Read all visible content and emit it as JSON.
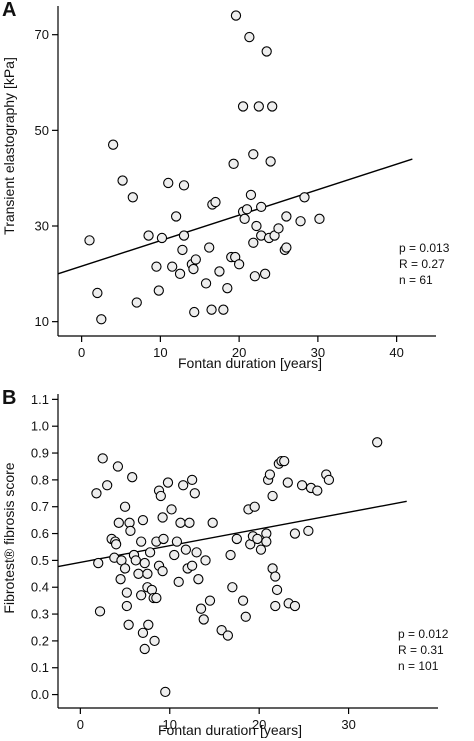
{
  "chart_data": [
    {
      "type": "scatter",
      "panel_label": "A",
      "xlabel": "Fontan duration [years]",
      "ylabel": "Transient elastography [kPa]",
      "xlim": [
        -3,
        45
      ],
      "ylim": [
        7,
        76
      ],
      "xticks": [
        0,
        10,
        20,
        30,
        40
      ],
      "yticks": [
        10,
        30,
        50,
        70
      ],
      "grid": false,
      "stats": [
        "p = 0.013",
        "R = 0.27",
        "n = 61"
      ],
      "trendline": {
        "x": [
          -3,
          42
        ],
        "y": [
          20,
          44
        ]
      },
      "points": [
        {
          "x": 1.0,
          "y": 27
        },
        {
          "x": 2.0,
          "y": 16
        },
        {
          "x": 2.5,
          "y": 10.5
        },
        {
          "x": 4.0,
          "y": 47
        },
        {
          "x": 5.2,
          "y": 39.5
        },
        {
          "x": 6.5,
          "y": 36
        },
        {
          "x": 7.0,
          "y": 14
        },
        {
          "x": 8.5,
          "y": 28
        },
        {
          "x": 9.5,
          "y": 21.5
        },
        {
          "x": 9.8,
          "y": 16.5
        },
        {
          "x": 10.2,
          "y": 27.5
        },
        {
          "x": 11.0,
          "y": 39
        },
        {
          "x": 11.5,
          "y": 21.5
        },
        {
          "x": 12.0,
          "y": 32
        },
        {
          "x": 12.5,
          "y": 20
        },
        {
          "x": 12.8,
          "y": 25
        },
        {
          "x": 13.0,
          "y": 28
        },
        {
          "x": 13.0,
          "y": 38.5
        },
        {
          "x": 14.0,
          "y": 22
        },
        {
          "x": 14.2,
          "y": 21
        },
        {
          "x": 14.3,
          "y": 12
        },
        {
          "x": 14.5,
          "y": 23
        },
        {
          "x": 15.8,
          "y": 18
        },
        {
          "x": 16.2,
          "y": 25.5
        },
        {
          "x": 16.5,
          "y": 12.5
        },
        {
          "x": 16.6,
          "y": 34.5
        },
        {
          "x": 17.0,
          "y": 35
        },
        {
          "x": 17.5,
          "y": 20.5
        },
        {
          "x": 18.0,
          "y": 12.5
        },
        {
          "x": 18.5,
          "y": 17
        },
        {
          "x": 19.0,
          "y": 23.5
        },
        {
          "x": 19.3,
          "y": 43
        },
        {
          "x": 19.5,
          "y": 23.5
        },
        {
          "x": 19.6,
          "y": 74
        },
        {
          "x": 20.0,
          "y": 22
        },
        {
          "x": 20.5,
          "y": 55
        },
        {
          "x": 20.5,
          "y": 33
        },
        {
          "x": 20.7,
          "y": 31.5
        },
        {
          "x": 21.0,
          "y": 33.5
        },
        {
          "x": 21.3,
          "y": 69.5
        },
        {
          "x": 21.5,
          "y": 36.5
        },
        {
          "x": 21.8,
          "y": 26.5
        },
        {
          "x": 21.8,
          "y": 45
        },
        {
          "x": 22.0,
          "y": 19.5
        },
        {
          "x": 22.2,
          "y": 30
        },
        {
          "x": 22.5,
          "y": 55
        },
        {
          "x": 22.8,
          "y": 34
        },
        {
          "x": 22.8,
          "y": 28
        },
        {
          "x": 23.3,
          "y": 20
        },
        {
          "x": 23.5,
          "y": 66.5
        },
        {
          "x": 23.8,
          "y": 27.5
        },
        {
          "x": 24.0,
          "y": 43.5
        },
        {
          "x": 24.2,
          "y": 55
        },
        {
          "x": 24.5,
          "y": 28
        },
        {
          "x": 25.0,
          "y": 29.5
        },
        {
          "x": 25.8,
          "y": 25
        },
        {
          "x": 26.0,
          "y": 25.5
        },
        {
          "x": 26.0,
          "y": 32
        },
        {
          "x": 27.8,
          "y": 31
        },
        {
          "x": 28.3,
          "y": 36
        },
        {
          "x": 30.2,
          "y": 31.5
        }
      ]
    },
    {
      "type": "scatter",
      "panel_label": "B",
      "xlabel": "Fontan duration [years]",
      "ylabel": "Fibrotest® fibrosis score",
      "xlim": [
        -2.5,
        40
      ],
      "ylim": [
        -0.05,
        1.12
      ],
      "xticks": [
        0,
        10,
        20,
        30
      ],
      "yticks": [
        0.0,
        0.1,
        0.2,
        0.3,
        0.4,
        0.5,
        0.6,
        0.7,
        0.8,
        0.9,
        1.0,
        1.1
      ],
      "ytick_labels": [
        "0.0",
        "0.1",
        "0.2",
        "0.3",
        "0.4",
        "0.5",
        "0.6",
        "0.7",
        "0.8",
        "0.9",
        "1.0",
        "1.1"
      ],
      "grid": false,
      "stats": [
        "p = 0.012",
        "R = 0.31",
        "n = 101"
      ],
      "trendline": {
        "x": [
          -2.5,
          36.5
        ],
        "y": [
          0.477,
          0.72
        ]
      },
      "points": [
        {
          "x": 1.8,
          "y": 0.75
        },
        {
          "x": 2.0,
          "y": 0.49
        },
        {
          "x": 2.2,
          "y": 0.31
        },
        {
          "x": 2.5,
          "y": 0.88
        },
        {
          "x": 3.0,
          "y": 0.78
        },
        {
          "x": 3.5,
          "y": 0.58
        },
        {
          "x": 3.8,
          "y": 0.51
        },
        {
          "x": 3.9,
          "y": 0.57
        },
        {
          "x": 4.0,
          "y": 0.56
        },
        {
          "x": 4.2,
          "y": 0.85
        },
        {
          "x": 4.3,
          "y": 0.64
        },
        {
          "x": 4.5,
          "y": 0.43
        },
        {
          "x": 4.6,
          "y": 0.5
        },
        {
          "x": 5.0,
          "y": 0.7
        },
        {
          "x": 5.0,
          "y": 0.47
        },
        {
          "x": 5.2,
          "y": 0.38
        },
        {
          "x": 5.2,
          "y": 0.33
        },
        {
          "x": 5.4,
          "y": 0.26
        },
        {
          "x": 5.5,
          "y": 0.64
        },
        {
          "x": 5.6,
          "y": 0.61
        },
        {
          "x": 5.8,
          "y": 0.81
        },
        {
          "x": 6.0,
          "y": 0.52
        },
        {
          "x": 6.0,
          "y": 0.52
        },
        {
          "x": 6.2,
          "y": 0.5
        },
        {
          "x": 6.5,
          "y": 0.45
        },
        {
          "x": 6.8,
          "y": 0.57
        },
        {
          "x": 6.8,
          "y": 0.37
        },
        {
          "x": 7.0,
          "y": 0.23
        },
        {
          "x": 7.0,
          "y": 0.65
        },
        {
          "x": 7.2,
          "y": 0.17
        },
        {
          "x": 7.2,
          "y": 0.49
        },
        {
          "x": 7.5,
          "y": 0.4
        },
        {
          "x": 7.5,
          "y": 0.45
        },
        {
          "x": 7.6,
          "y": 0.26
        },
        {
          "x": 7.8,
          "y": 0.53
        },
        {
          "x": 8.0,
          "y": 0.39
        },
        {
          "x": 8.2,
          "y": 0.36
        },
        {
          "x": 8.3,
          "y": 0.2
        },
        {
          "x": 8.5,
          "y": 0.57
        },
        {
          "x": 8.5,
          "y": 0.36
        },
        {
          "x": 8.8,
          "y": 0.76
        },
        {
          "x": 8.8,
          "y": 0.48
        },
        {
          "x": 9.0,
          "y": 0.74
        },
        {
          "x": 9.2,
          "y": 0.66
        },
        {
          "x": 9.2,
          "y": 0.46
        },
        {
          "x": 9.3,
          "y": 0.58
        },
        {
          "x": 9.5,
          "y": 0.01
        },
        {
          "x": 9.8,
          "y": 0.79
        },
        {
          "x": 10.2,
          "y": 0.69
        },
        {
          "x": 10.5,
          "y": 0.52
        },
        {
          "x": 10.8,
          "y": 0.57
        },
        {
          "x": 11.0,
          "y": 0.42
        },
        {
          "x": 11.2,
          "y": 0.64
        },
        {
          "x": 11.5,
          "y": 0.78
        },
        {
          "x": 11.8,
          "y": 0.54
        },
        {
          "x": 12.0,
          "y": 0.47
        },
        {
          "x": 12.2,
          "y": 0.64
        },
        {
          "x": 12.5,
          "y": 0.8
        },
        {
          "x": 12.5,
          "y": 0.48
        },
        {
          "x": 12.8,
          "y": 0.75
        },
        {
          "x": 13.0,
          "y": 0.53
        },
        {
          "x": 13.2,
          "y": 0.43
        },
        {
          "x": 13.5,
          "y": 0.32
        },
        {
          "x": 13.8,
          "y": 0.28
        },
        {
          "x": 14.0,
          "y": 0.5
        },
        {
          "x": 14.5,
          "y": 0.35
        },
        {
          "x": 14.8,
          "y": 0.64
        },
        {
          "x": 15.8,
          "y": 0.24
        },
        {
          "x": 16.5,
          "y": 0.22
        },
        {
          "x": 16.8,
          "y": 0.52
        },
        {
          "x": 17.0,
          "y": 0.4
        },
        {
          "x": 17.5,
          "y": 0.58
        },
        {
          "x": 18.2,
          "y": 0.35
        },
        {
          "x": 18.5,
          "y": 0.29
        },
        {
          "x": 18.8,
          "y": 0.69
        },
        {
          "x": 19.0,
          "y": 0.56
        },
        {
          "x": 19.3,
          "y": 0.59
        },
        {
          "x": 19.5,
          "y": 0.7
        },
        {
          "x": 19.8,
          "y": 0.58
        },
        {
          "x": 20.2,
          "y": 0.54
        },
        {
          "x": 20.8,
          "y": 0.6
        },
        {
          "x": 20.8,
          "y": 0.57
        },
        {
          "x": 21.0,
          "y": 0.8
        },
        {
          "x": 21.2,
          "y": 0.82
        },
        {
          "x": 21.5,
          "y": 0.47
        },
        {
          "x": 21.5,
          "y": 0.74
        },
        {
          "x": 21.8,
          "y": 0.44
        },
        {
          "x": 21.8,
          "y": 0.33
        },
        {
          "x": 22.0,
          "y": 0.39
        },
        {
          "x": 22.2,
          "y": 0.86
        },
        {
          "x": 22.5,
          "y": 0.87
        },
        {
          "x": 22.8,
          "y": 0.87
        },
        {
          "x": 23.2,
          "y": 0.79
        },
        {
          "x": 23.3,
          "y": 0.34
        },
        {
          "x": 24.0,
          "y": 0.6
        },
        {
          "x": 24.0,
          "y": 0.33
        },
        {
          "x": 24.8,
          "y": 0.78
        },
        {
          "x": 25.5,
          "y": 0.61
        },
        {
          "x": 25.8,
          "y": 0.77
        },
        {
          "x": 26.5,
          "y": 0.76
        },
        {
          "x": 27.5,
          "y": 0.82
        },
        {
          "x": 27.8,
          "y": 0.8
        },
        {
          "x": 33.2,
          "y": 0.94
        }
      ]
    }
  ]
}
